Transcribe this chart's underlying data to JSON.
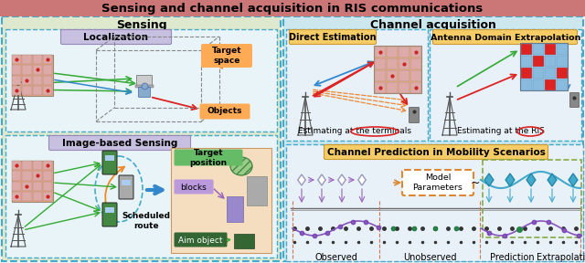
{
  "title": "Sensing and channel acquisition in RIS communications",
  "title_bg": "#cc7777",
  "title_color": "black",
  "title_fontsize": 9.5,
  "left_section_bg": "#dde8cc",
  "right_section_bg": "#cce8ee",
  "left_label": "Sensing",
  "right_label": "Channel acquisition",
  "fig_bg": "#f0f0f0",
  "dashed_border_color": "#44aacc",
  "localization_box_color": "#c8c0e0",
  "localization_label": "Localization",
  "image_sensing_box_color": "#c8c0e0",
  "image_sensing_label": "Image-based Sensing",
  "direct_est_box_color": "#f5cc66",
  "direct_est_label": "Direct Estimation",
  "antenna_domain_box_color": "#f5cc66",
  "antenna_domain_label": "Antenna Domain Extrapolation",
  "channel_pred_box_color": "#f5cc66",
  "channel_pred_label": "Channel Prediction in Mobility Scenarios",
  "target_space_label": "Target\nspace",
  "target_space_bg": "#ffaa55",
  "objects_label": "Objects",
  "objects_bg": "#ffaa55",
  "target_pos_label": "Target\nposition",
  "target_pos_bg": "#66bb66",
  "blocks_label": "blocks",
  "blocks_bg": "#bb99dd",
  "aim_object_label": "Aim object",
  "aim_object_bg": "#336633",
  "scheduled_route_label": "Scheduled\nroute",
  "model_params_label": "Model\nParameters",
  "model_params_bg": "#ffffff",
  "model_params_border": "#dd8833",
  "estimating_terminals_label": "Estimating at the terminals",
  "estimating_ris_label": "Estimating at the RIS",
  "observed_label": "Observed",
  "unobserved_label": "Unobserved",
  "prediction_label": "Prediction",
  "extrapolation_label": "Extrapolation",
  "arrow_red": "#dd2222",
  "arrow_blue": "#3388cc",
  "arrow_orange": "#ee7722",
  "arrow_green": "#33aa33",
  "wave_color": "#44aacc",
  "dot_black": "#333333",
  "dot_purple": "#7744aa",
  "dot_green": "#228844",
  "dot_teal": "#44aacc",
  "dot_diamond_gray": "#9999bb",
  "dashed_green_box": "#88aa44",
  "inner_box_bg": "#e8f4f8",
  "inner_box_bg2": "#e8f0f8"
}
